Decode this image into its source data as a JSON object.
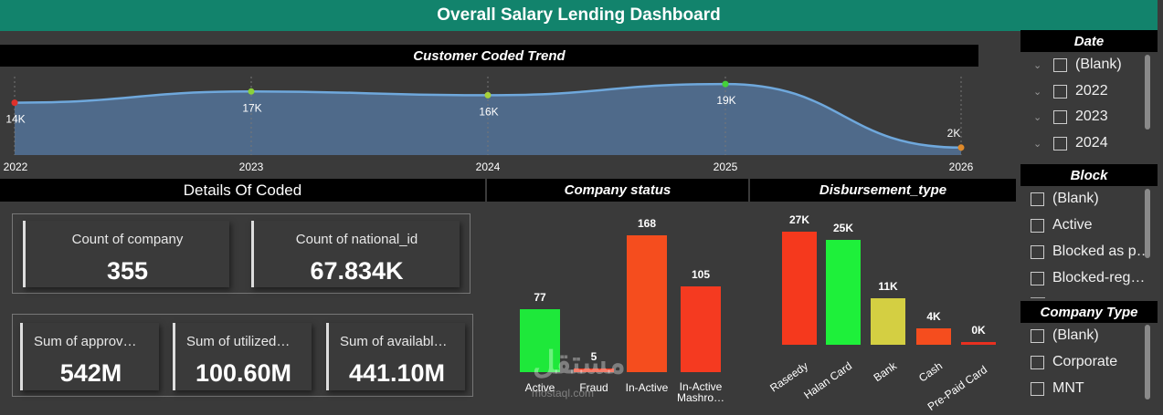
{
  "header": {
    "title": "Overall Salary Lending Dashboard"
  },
  "trend": {
    "title": "Customer Coded Trend",
    "chart_data": {
      "type": "area",
      "x": [
        "2022",
        "2023",
        "2024",
        "2025",
        "2026"
      ],
      "values": [
        14,
        17,
        16,
        19,
        2
      ],
      "labels": [
        "14K",
        "17K",
        "16K",
        "19K",
        "2K"
      ],
      "unit": "K"
    }
  },
  "details": {
    "title": "Details Of Coded",
    "kpis_top": [
      {
        "label": "Count of company",
        "value": "355"
      },
      {
        "label": "Count of national_id",
        "value": "67.834K"
      }
    ],
    "kpis_bottom": [
      {
        "label": "Sum of approv…",
        "value": "542M"
      },
      {
        "label": "Sum of utilized…",
        "value": "100.60M"
      },
      {
        "label": "Sum of availabl…",
        "value": "441.10M"
      }
    ]
  },
  "company_status": {
    "title": "Company status",
    "chart_data": {
      "type": "bar",
      "categories": [
        "Active",
        "Fraud",
        "In-Active",
        "In-Active Mashro…"
      ],
      "values": [
        77,
        5,
        168,
        105
      ],
      "colors": [
        "#1ee83a",
        "#f03a1e",
        "#f54d1e",
        "#f53a20"
      ]
    }
  },
  "disbursement": {
    "title": "Disbursement_type",
    "chart_data": {
      "type": "bar",
      "categories": [
        "Raseedy",
        "Halan Card",
        "Bank",
        "Cash",
        "Pre-Paid Card"
      ],
      "values": [
        27,
        25,
        11,
        4,
        0
      ],
      "labels": [
        "27K",
        "25K",
        "11K",
        "4K",
        "0K"
      ],
      "colors": [
        "#f5391d",
        "#1ef03a",
        "#d4cf42",
        "#f54d1e",
        "#e83020"
      ]
    }
  },
  "slicers": {
    "date": {
      "title": "Date",
      "items": [
        "(Blank)",
        "2022",
        "2023",
        "2024"
      ]
    },
    "block": {
      "title": "Block",
      "items": [
        "(Blank)",
        "Active",
        "Blocked as p…",
        "Blocked-reg…"
      ]
    },
    "company_type": {
      "title": "Company Type",
      "items": [
        "(Blank)",
        "Corporate",
        "MNT"
      ]
    }
  },
  "watermark": {
    "text": "مستقل",
    "sub": "mostaql.com"
  }
}
